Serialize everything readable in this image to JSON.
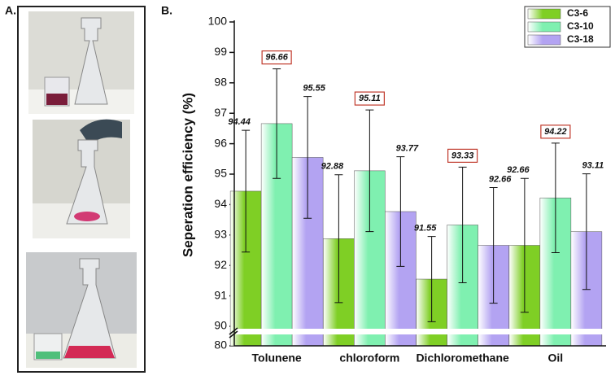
{
  "panel_labels": [
    "A.",
    "B."
  ],
  "chart_data": {
    "type": "bar",
    "y_label": "Seperation efficiency (%)",
    "categories": [
      "Tolunene",
      "chloroform",
      "Dichloromethane",
      "Oil"
    ],
    "series": [
      {
        "name": "C3-6",
        "color": "#7fcf25",
        "values": [
          94.44,
          92.88,
          91.55,
          92.66
        ],
        "errors": [
          2.0,
          2.1,
          1.4,
          2.2
        ]
      },
      {
        "name": "C3-10",
        "color": "#7ff0b0",
        "values": [
          96.66,
          95.11,
          93.33,
          94.22
        ],
        "errors": [
          1.8,
          2.0,
          1.9,
          1.8
        ],
        "boxed_labels": true
      },
      {
        "name": "C3-18",
        "color": "#b3a3f2",
        "values": [
          95.55,
          93.77,
          92.66,
          93.11
        ],
        "errors": [
          2.0,
          1.8,
          1.9,
          1.9
        ]
      }
    ],
    "ylim": [
      80,
      100
    ],
    "ybreak": [
      80,
      90
    ],
    "yticks": [
      80,
      90,
      91,
      92,
      93,
      94,
      95,
      96,
      97,
      98,
      99,
      100
    ],
    "legend": "upper right"
  }
}
